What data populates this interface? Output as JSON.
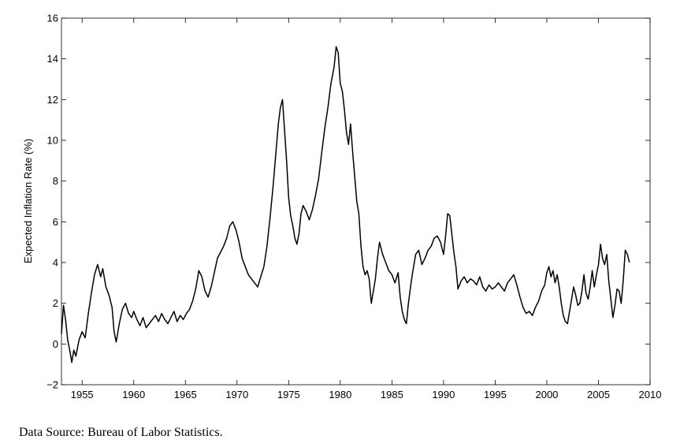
{
  "chart_data": {
    "type": "line",
    "title": "",
    "xlabel": "",
    "ylabel": "Expected Inflation Rate (%)",
    "xlim": [
      1953,
      2010
    ],
    "ylim": [
      -2,
      16
    ],
    "x_ticks": [
      "1955",
      "1960",
      "1965",
      "1970",
      "1975",
      "1980",
      "1985",
      "1990",
      "1995",
      "2000",
      "2005",
      "2010"
    ],
    "y_ticks": [
      "−2",
      "0",
      "2",
      "4",
      "6",
      "8",
      "10",
      "12",
      "14",
      "16"
    ],
    "grid": false,
    "line_color": "#000000",
    "series": [
      {
        "x": [
          1953.0,
          1953.2,
          1953.4,
          1953.6,
          1953.8,
          1954.0,
          1954.2,
          1954.4,
          1954.7,
          1955.0,
          1955.3,
          1955.6,
          1955.9,
          1956.2,
          1956.5,
          1956.8,
          1957.0,
          1957.3,
          1957.6,
          1957.9,
          1958.1,
          1958.3,
          1958.6,
          1958.9,
          1959.2,
          1959.5,
          1959.8,
          1960.0,
          1960.3,
          1960.6,
          1960.9,
          1961.2,
          1961.5,
          1961.8,
          1962.1,
          1962.4,
          1962.7,
          1963.0,
          1963.3,
          1963.6,
          1963.9,
          1964.2,
          1964.5,
          1964.8,
          1965.1,
          1965.4,
          1965.7,
          1966.0,
          1966.3,
          1966.6,
          1966.9,
          1967.2,
          1967.5,
          1967.8,
          1968.1,
          1968.4,
          1968.7,
          1969.0,
          1969.3,
          1969.6,
          1969.9,
          1970.2,
          1970.5,
          1970.8,
          1971.1,
          1971.4,
          1971.7,
          1972.0,
          1972.3,
          1972.6,
          1972.9,
          1973.2,
          1973.5,
          1973.8,
          1974.0,
          1974.2,
          1974.4,
          1974.6,
          1974.8,
          1975.0,
          1975.2,
          1975.4,
          1975.6,
          1975.8,
          1976.0,
          1976.2,
          1976.4,
          1976.7,
          1977.0,
          1977.3,
          1977.6,
          1977.9,
          1978.2,
          1978.5,
          1978.8,
          1979.1,
          1979.4,
          1979.6,
          1979.8,
          1980.0,
          1980.2,
          1980.4,
          1980.6,
          1980.8,
          1981.0,
          1981.2,
          1981.4,
          1981.6,
          1981.8,
          1982.0,
          1982.2,
          1982.4,
          1982.6,
          1982.8,
          1983.0,
          1983.2,
          1983.4,
          1983.6,
          1983.8,
          1984.1,
          1984.4,
          1984.7,
          1985.0,
          1985.3,
          1985.6,
          1985.8,
          1986.0,
          1986.2,
          1986.4,
          1986.6,
          1986.8,
          1987.0,
          1987.3,
          1987.6,
          1987.9,
          1988.2,
          1988.5,
          1988.8,
          1989.1,
          1989.4,
          1989.7,
          1990.0,
          1990.2,
          1990.4,
          1990.6,
          1990.8,
          1991.0,
          1991.2,
          1991.4,
          1991.7,
          1992.0,
          1992.3,
          1992.6,
          1992.9,
          1993.2,
          1993.5,
          1993.8,
          1994.1,
          1994.4,
          1994.7,
          1995.0,
          1995.3,
          1995.6,
          1995.9,
          1996.2,
          1996.5,
          1996.8,
          1997.1,
          1997.4,
          1997.7,
          1998.0,
          1998.3,
          1998.6,
          1998.9,
          1999.2,
          1999.5,
          1999.8,
          2000.0,
          2000.2,
          2000.4,
          2000.6,
          2000.8,
          2001.0,
          2001.2,
          2001.4,
          2001.6,
          2001.8,
          2002.0,
          2002.2,
          2002.4,
          2002.6,
          2002.8,
          2003.0,
          2003.2,
          2003.4,
          2003.6,
          2003.8,
          2004.0,
          2004.2,
          2004.4,
          2004.6,
          2004.8,
          2005.0,
          2005.2,
          2005.4,
          2005.6,
          2005.8,
          2006.0,
          2006.2,
          2006.4,
          2006.6,
          2006.8,
          2007.0,
          2007.2,
          2007.4,
          2007.6,
          2007.8,
          2008.0
        ],
        "y": [
          0.5,
          1.9,
          1.2,
          0.2,
          -0.3,
          -0.9,
          -0.3,
          -0.6,
          0.2,
          0.6,
          0.3,
          1.5,
          2.5,
          3.4,
          3.9,
          3.3,
          3.7,
          2.8,
          2.4,
          1.8,
          0.6,
          0.1,
          1.0,
          1.7,
          2.0,
          1.5,
          1.3,
          1.6,
          1.2,
          0.9,
          1.3,
          0.8,
          1.0,
          1.2,
          1.4,
          1.1,
          1.5,
          1.2,
          1.0,
          1.3,
          1.6,
          1.1,
          1.4,
          1.2,
          1.5,
          1.7,
          2.1,
          2.7,
          3.6,
          3.3,
          2.6,
          2.3,
          2.8,
          3.5,
          4.2,
          4.5,
          4.8,
          5.2,
          5.8,
          6.0,
          5.6,
          5.0,
          4.2,
          3.8,
          3.4,
          3.2,
          3.0,
          2.8,
          3.3,
          3.8,
          4.8,
          6.2,
          7.8,
          9.6,
          10.8,
          11.6,
          12.0,
          10.5,
          9.0,
          7.2,
          6.3,
          5.8,
          5.2,
          4.9,
          5.4,
          6.4,
          6.8,
          6.5,
          6.1,
          6.6,
          7.3,
          8.1,
          9.4,
          10.6,
          11.6,
          12.8,
          13.6,
          14.6,
          14.3,
          12.8,
          12.4,
          11.5,
          10.4,
          9.8,
          10.8,
          9.4,
          8.2,
          7.0,
          6.4,
          4.8,
          3.8,
          3.4,
          3.6,
          3.2,
          2.0,
          2.6,
          3.2,
          4.2,
          5.0,
          4.4,
          4.0,
          3.6,
          3.4,
          3.0,
          3.5,
          2.3,
          1.6,
          1.2,
          1.0,
          2.0,
          2.8,
          3.5,
          4.4,
          4.6,
          3.9,
          4.2,
          4.6,
          4.8,
          5.2,
          5.3,
          5.0,
          4.4,
          5.3,
          6.4,
          6.3,
          5.4,
          4.5,
          3.8,
          2.7,
          3.1,
          3.3,
          3.0,
          3.2,
          3.1,
          2.9,
          3.3,
          2.8,
          2.6,
          2.9,
          2.7,
          2.8,
          3.0,
          2.8,
          2.6,
          3.0,
          3.2,
          3.4,
          2.9,
          2.3,
          1.8,
          1.5,
          1.6,
          1.4,
          1.8,
          2.1,
          2.6,
          2.9,
          3.5,
          3.8,
          3.3,
          3.6,
          3.0,
          3.4,
          2.8,
          2.0,
          1.4,
          1.1,
          1.0,
          1.6,
          2.2,
          2.8,
          2.4,
          1.9,
          2.0,
          2.6,
          3.4,
          2.5,
          2.2,
          2.8,
          3.6,
          2.8,
          3.4,
          3.9,
          4.9,
          4.2,
          3.9,
          4.4,
          3.1,
          2.2,
          1.3,
          1.9,
          2.7,
          2.6,
          2.0,
          3.1,
          4.6,
          4.4,
          4.0
        ]
      }
    ]
  },
  "source_note": "Data Source:  Bureau of Labor Statistics."
}
